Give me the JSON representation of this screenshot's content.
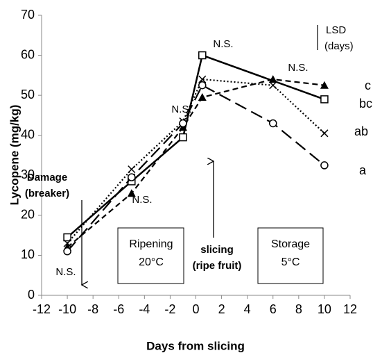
{
  "chart_data": {
    "type": "line",
    "x_label": "Days from slicing",
    "y_label": "Lycopene (mg/kg)",
    "xlim": [
      -12,
      12
    ],
    "xticks": [
      -12,
      -10,
      -8,
      -6,
      -4,
      -2,
      0,
      2,
      4,
      6,
      8,
      10,
      12
    ],
    "ylim": [
      0,
      70
    ],
    "yticks": [
      0,
      10,
      20,
      30,
      40,
      50,
      60,
      70
    ],
    "grid": false,
    "series": [
      {
        "name": "bc",
        "color": "#000000",
        "marker": "square",
        "dash": "solid",
        "x": [
          -10,
          -5,
          -1,
          0.5,
          10
        ],
        "values": [
          14.5,
          28.5,
          39.5,
          60,
          49
        ]
      },
      {
        "name": "c",
        "color": "#000000",
        "marker": "triangle",
        "dash": "dashed",
        "x": [
          -10,
          -5,
          -1,
          0.5,
          6,
          10
        ],
        "values": [
          12,
          25.5,
          42,
          49.5,
          54,
          52.5
        ]
      },
      {
        "name": "ab",
        "color": "#000000",
        "marker": "cross",
        "dash": "dotted",
        "x": [
          -10,
          -5,
          -1,
          0.5,
          6,
          10
        ],
        "values": [
          13,
          31.5,
          43.5,
          54,
          52.5,
          40.5
        ]
      },
      {
        "name": "a",
        "color": "#000000",
        "marker": "circle",
        "dash": "longdash",
        "x": [
          -10,
          -5,
          -1,
          0.5,
          6,
          10
        ],
        "values": [
          11,
          29.5,
          43,
          52.5,
          43,
          32.5
        ]
      }
    ],
    "annotations": [
      "N.S.",
      "N.S.",
      "N.S.",
      "N.S.",
      "N.S.",
      "LSD",
      "(days)",
      "Damage",
      "(breaker)",
      "Ripening",
      "20°C",
      "slicing",
      "(ripe fruit)",
      "Storage",
      "5°C"
    ]
  }
}
